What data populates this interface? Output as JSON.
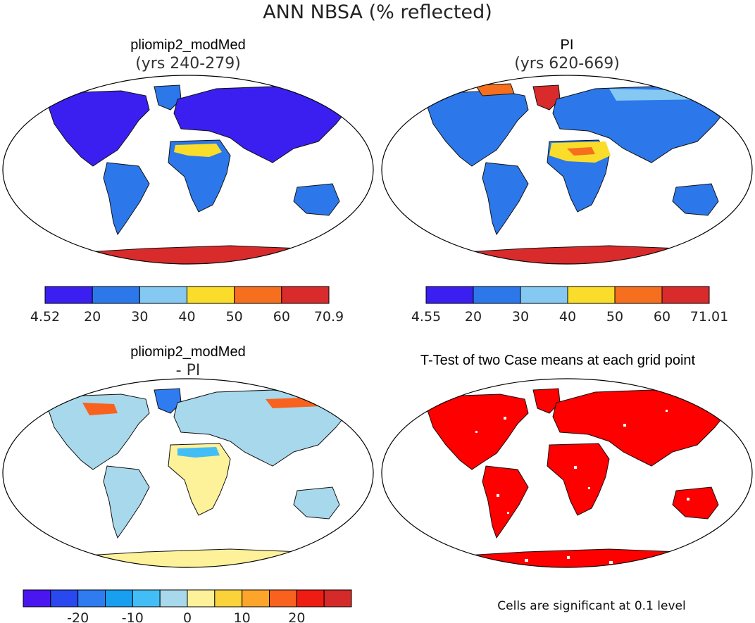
{
  "figure": {
    "title": "ANN NBSA (% reflected)",
    "footnote": "Cells are significant at 0.1 level"
  },
  "panels": {
    "case": {
      "title": "pliomip2_modMed",
      "subtitle": "(yrs 240-279)"
    },
    "pi": {
      "title": "PI",
      "subtitle": "(yrs 620-669)"
    },
    "diff": {
      "title": "pliomip2_modMed",
      "subtitle": "- PI"
    },
    "ttest": {
      "title": "T-Test of two Case means at each grid point"
    }
  },
  "colorbars": {
    "case": {
      "colors": [
        "#3a1ff0",
        "#2c78ea",
        "#85c8f2",
        "#fadd2a",
        "#f56f1f",
        "#d92b2b"
      ],
      "labels": [
        "4.52",
        "20",
        "30",
        "40",
        "50",
        "60",
        "70.9"
      ]
    },
    "pi": {
      "colors": [
        "#3a1ff0",
        "#2c78ea",
        "#85c8f2",
        "#fadd2a",
        "#f56f1f",
        "#d92b2b"
      ],
      "labels": [
        "4.55",
        "20",
        "30",
        "40",
        "50",
        "60",
        "71.01"
      ]
    },
    "diff": {
      "colors": [
        "#4a16f0",
        "#2a48f0",
        "#2f7bf0",
        "#189ff0",
        "#43bdf5",
        "#a8d8ec",
        "#fdf19a",
        "#fcd23a",
        "#fca52a",
        "#f8621e",
        "#ee1c12",
        "#d42a2a"
      ],
      "labels": [
        "-20",
        "-10",
        "0",
        "10",
        "20"
      ]
    }
  },
  "colors": {
    "significant": "#ff0000",
    "land_low": "#3a1ff0",
    "land_mid": "#2c78ea",
    "antarctica": "#d92b2b"
  }
}
